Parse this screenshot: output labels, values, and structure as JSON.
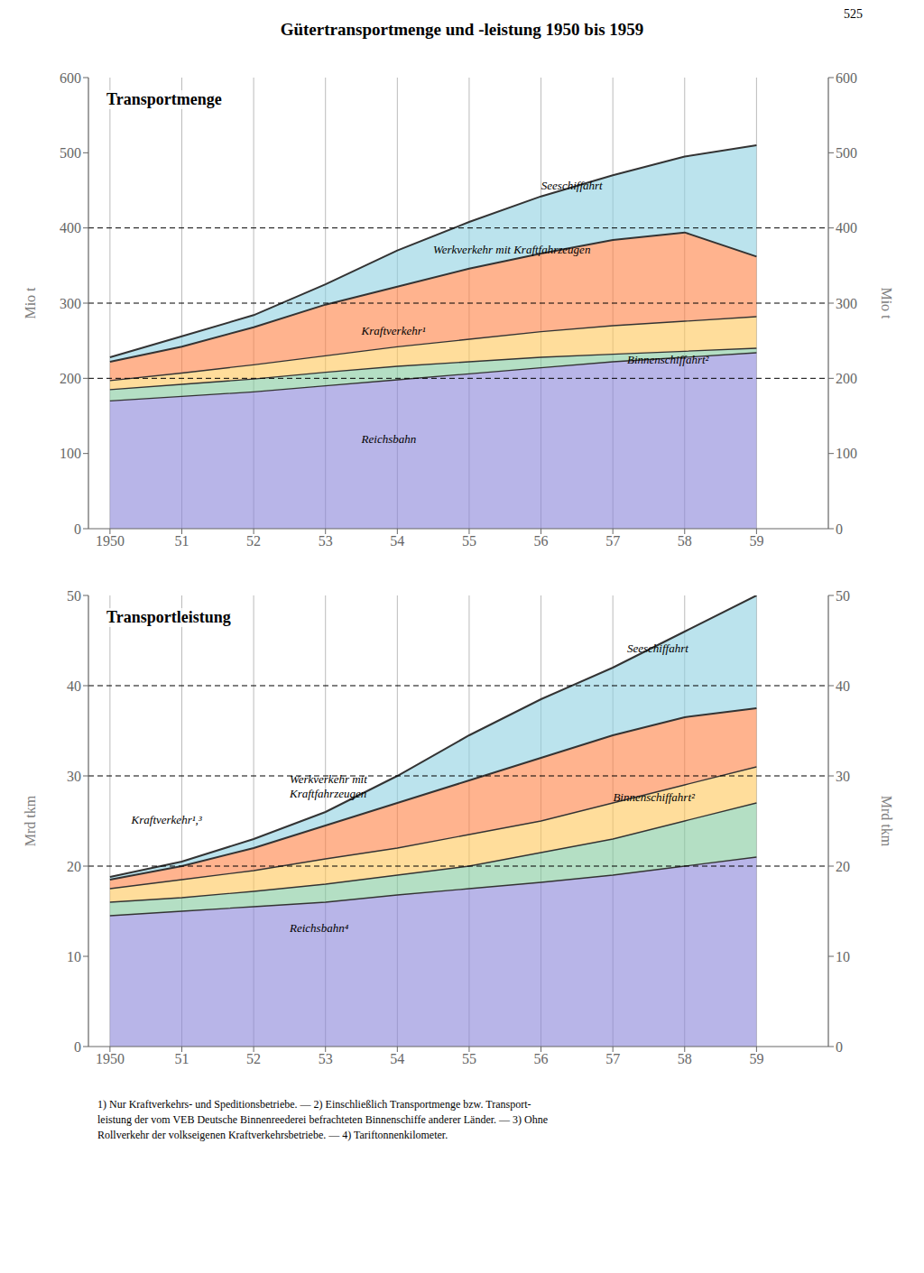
{
  "title": "Gütertransportmenge und -leistung 1950 bis 1959",
  "page_number": "525",
  "footnote": "1) Nur Kraftverkehrs- und Speditionsbetriebe. — 2) Einschließlich Transportmenge bzw. Transport-\nleistung der vom VEB Deutsche Binnenreederei befrachteten Binnenschiffe anderer Länder. — 3) Ohne\nRollverkehr der volkseigenen Kraftverkehrsbetriebe. — 4) Tariftonnenkilometer.",
  "chart_data": [
    {
      "type": "area",
      "title": "Transportmenge",
      "ylabel": "Mio t",
      "y2label": "Mio t",
      "x": [
        1950,
        1951,
        1952,
        1953,
        1954,
        1955,
        1956,
        1957,
        1958,
        1959
      ],
      "xlim": [
        1949.7,
        1960.0
      ],
      "xticks": [
        1950,
        {
          "value": 1951,
          "label": "51"
        },
        {
          "value": 1952,
          "label": "52"
        },
        {
          "value": 1953,
          "label": "53"
        },
        {
          "value": 1954,
          "label": "54"
        },
        {
          "value": 1955,
          "label": "55"
        },
        {
          "value": 1956,
          "label": "56"
        },
        {
          "value": 1957,
          "label": "57"
        },
        {
          "value": 1958,
          "label": "58"
        },
        {
          "value": 1959,
          "label": "59"
        }
      ],
      "ylim": [
        0,
        600
      ],
      "yticks": [
        0,
        100,
        200,
        300,
        400,
        500,
        600
      ],
      "y2lim": [
        0,
        600
      ],
      "y2ticks": [
        0,
        100,
        200,
        300,
        400,
        500,
        600
      ],
      "grid": "x",
      "reference_lines": [
        200,
        300,
        400
      ],
      "series": [
        {
          "name": "Reichsbahn",
          "values": [
            170,
            176,
            182,
            190,
            198,
            206,
            214,
            222,
            228,
            234
          ]
        },
        {
          "name": "Binnenschiffahrt²",
          "values": [
            185,
            192,
            199,
            208,
            216,
            222,
            228,
            232,
            236,
            240
          ]
        },
        {
          "name": "Kraftverkehr¹",
          "values": [
            197,
            207,
            218,
            230,
            242,
            252,
            262,
            270,
            276,
            282
          ]
        },
        {
          "name": "Werkverkehr mit Kraftfahrzeugen",
          "values": [
            222,
            242,
            268,
            298,
            322,
            346,
            366,
            384,
            394,
            362
          ]
        },
        {
          "name": "Seeschiffahrt",
          "values": [
            228,
            256,
            284,
            325,
            370,
            408,
            442,
            470,
            495,
            510
          ]
        }
      ]
    },
    {
      "type": "area",
      "title": "Transportleistung",
      "ylabel": "Mrd tkm",
      "y2label": "Mrd tkm",
      "x": [
        1950,
        1951,
        1952,
        1953,
        1954,
        1955,
        1956,
        1957,
        1958,
        1959
      ],
      "xlim": [
        1949.7,
        1960.0
      ],
      "xticks": [
        1950,
        {
          "value": 1951,
          "label": "51"
        },
        {
          "value": 1952,
          "label": "52"
        },
        {
          "value": 1953,
          "label": "53"
        },
        {
          "value": 1954,
          "label": "54"
        },
        {
          "value": 1955,
          "label": "55"
        },
        {
          "value": 1956,
          "label": "56"
        },
        {
          "value": 1957,
          "label": "57"
        },
        {
          "value": 1958,
          "label": "58"
        },
        {
          "value": 1959,
          "label": "59"
        }
      ],
      "ylim": [
        0,
        50
      ],
      "yticks": [
        0,
        10,
        20,
        30,
        40,
        50
      ],
      "y2lim": [
        0,
        50
      ],
      "y2ticks": [
        0,
        10,
        20,
        30,
        40,
        50
      ],
      "grid": "x",
      "reference_lines": [
        20,
        30,
        40
      ],
      "series": [
        {
          "name": "Reichsbahn⁴",
          "values": [
            14.5,
            15.0,
            15.5,
            16.0,
            16.8,
            17.5,
            18.2,
            19.0,
            20.0,
            21.0
          ]
        },
        {
          "name": "Binnenschiffahrt²",
          "values": [
            16.0,
            16.5,
            17.2,
            18.0,
            19.0,
            20.0,
            21.5,
            23.0,
            25.0,
            27.0
          ]
        },
        {
          "name": "Kraftverkehr¹,³",
          "values": [
            17.5,
            18.5,
            19.5,
            20.8,
            22.0,
            23.5,
            25.0,
            27.0,
            29.0,
            31.0
          ]
        },
        {
          "name": "Werkverkehr mit\nKraftfahrzeugen",
          "values": [
            18.5,
            20.0,
            22.0,
            24.5,
            27.0,
            29.5,
            32.0,
            34.5,
            36.5,
            37.5
          ]
        },
        {
          "name": "Seeschiffahrt",
          "values": [
            18.8,
            20.5,
            23.0,
            26.0,
            30.0,
            34.5,
            38.5,
            42.0,
            46.0,
            50.0
          ]
        }
      ]
    }
  ]
}
